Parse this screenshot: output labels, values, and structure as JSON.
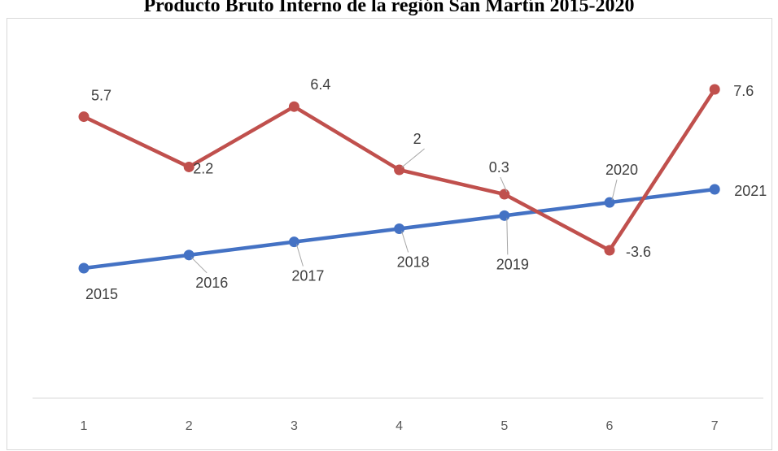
{
  "chart_data": {
    "type": "line",
    "title": "Producto Bruto Interno de la región San Martín 2015-2020",
    "xlabel": "",
    "ylabel": "",
    "x": [
      1,
      2,
      3,
      4,
      5,
      6,
      7
    ],
    "series": [
      {
        "color": "#4472c4",
        "values": [
          2015,
          2016,
          2017,
          2018,
          2019,
          2020,
          2021
        ],
        "data_labels": [
          "2015",
          "2016",
          "2017",
          "2018",
          "2019",
          "2020",
          "2021"
        ]
      },
      {
        "color": "#c0504d",
        "values": [
          5.7,
          2.2,
          6.4,
          2,
          0.3,
          -3.6,
          7.6
        ],
        "data_labels": [
          "5.7",
          "2.2",
          "6.4",
          "2",
          "0.3",
          "-3.6",
          "7.6"
        ]
      }
    ],
    "x_ticks": [
      "1",
      "2",
      "3",
      "4",
      "5",
      "6",
      "7"
    ],
    "grid": false,
    "legend": "none"
  }
}
